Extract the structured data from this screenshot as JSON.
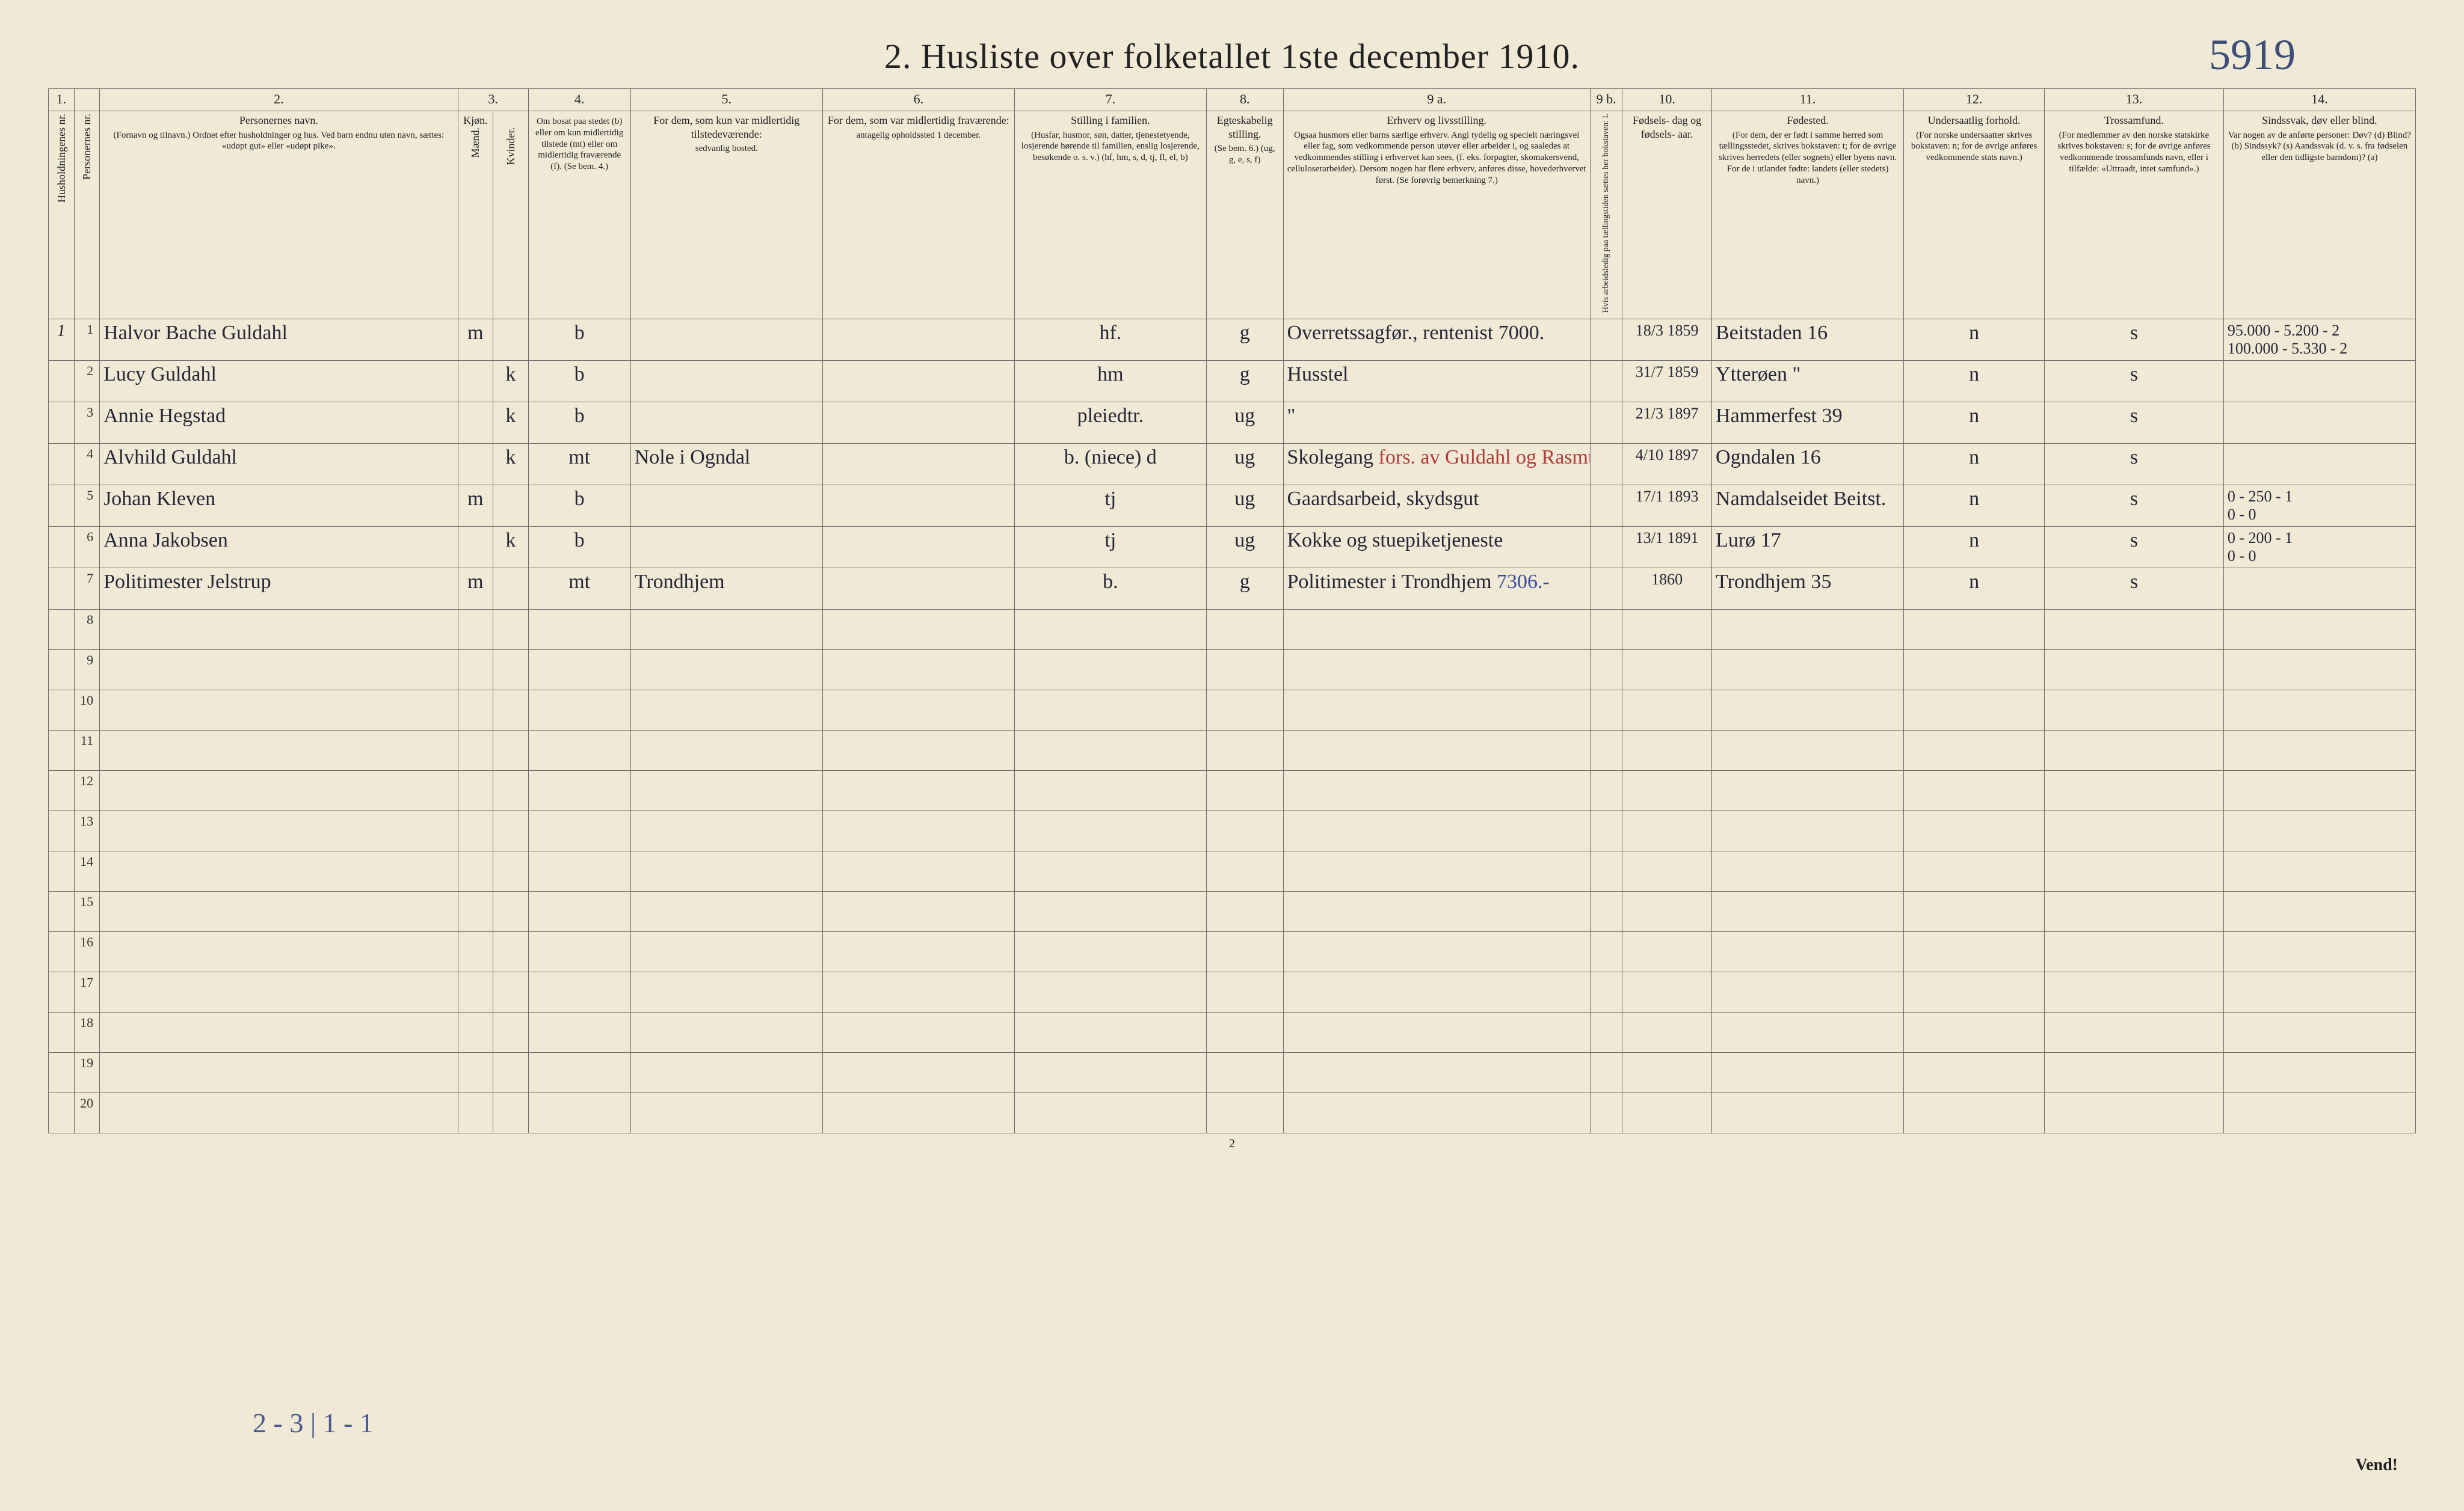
{
  "title": "2.  Husliste over folketallet 1ste december 1910.",
  "hand_top_number": "5919",
  "page_number_bottom": "2",
  "vend": "Vend!",
  "footer_handwritten": "2 - 3 | 1 - 1",
  "colors": {
    "paper": "#efe9d6",
    "ink": "#262636",
    "blue_ink": "#3a4aa0",
    "red_ink": "#b33a3a",
    "rule": "#6b6b6b"
  },
  "col_numbers": [
    "1.",
    "",
    "2.",
    "3.",
    "",
    "4.",
    "5.",
    "6.",
    "7.",
    "8.",
    "9 a.",
    "9 b.",
    "10.",
    "11.",
    "12.",
    "13.",
    "14."
  ],
  "headers": {
    "c1": "Husholdningenes nr.",
    "c1b": "Personernes nr.",
    "c2": "Personernes navn.",
    "c2_small": "(Fornavn og tilnavn.)\nOrdnet efter husholdninger og hus.\nVed barn endnu uten navn, sættes: «udøpt gut» eller «udøpt pike».",
    "c3": "Kjøn.",
    "c3m": "Mænd.",
    "c3k": "Kvinder.",
    "c4": "Om bosat paa stedet (b) eller om kun midlertidig tilstede (mt) eller om midlertidig fraværende (f). (Se bem. 4.)",
    "c5": "For dem, som kun var midlertidig tilstedeværende:",
    "c5_small": "sedvanlig bosted.",
    "c6": "For dem, som var midlertidig fraværende:",
    "c6_small": "antagelig opholdssted 1 december.",
    "c7": "Stilling i familien.",
    "c7_small": "(Husfar, husmor, søn, datter, tjenestetyende, losjerende hørende til familien, enslig losjerende, besøkende o. s. v.)\n(hf, hm, s, d, tj, fl, el, b)",
    "c8": "Egteskabelig stilling.",
    "c8_small": "(Se bem. 6.)\n(ug, g, e, s, f)",
    "c9a": "Erhverv og livsstilling.",
    "c9a_small": "Ogsaa husmors eller barns særlige erhverv. Angi tydelig og specielt næringsvei eller fag, som vedkommende person utøver eller arbeider i, og saaledes at vedkommendes stilling i erhvervet kan sees, (f. eks. forpagter, skomakersvend, celluloserarbeider). Dersom nogen har flere erhverv, anføres disse, hovederhvervet først. (Se forøvrig bemerkning 7.)",
    "c9b": "Hvis arbeidsledig paa tællingstiden sættes her bokstaven: l.",
    "c10": "Fødsels- dag og fødsels- aar.",
    "c11": "Fødested.",
    "c11_small": "(For dem, der er født i samme herred som tællingsstedet, skrives bokstaven: t; for de øvrige skrives herredets (eller sognets) eller byens navn. For de i utlandet fødte: landets (eller stedets) navn.)",
    "c12": "Undersaatlig forhold.",
    "c12_small": "(For norske undersaatter skrives bokstaven: n; for de øvrige anføres vedkommende stats navn.)",
    "c13": "Trossamfund.",
    "c13_small": "(For medlemmer av den norske statskirke skrives bokstaven: s; for de øvrige anføres vedkommende trossamfunds navn, eller i tilfælde: «Uttraadt, intet samfund».)",
    "c14": "Sindssvak, døv eller blind.",
    "c14_small": "Var nogen av de anførte personer:\nDøv?  (d)\nBlind?  (b)\nSindssyk?  (s)\nAandssvak (d. v. s. fra fødselen eller den tidligste barndom)?  (a)"
  },
  "rows": [
    {
      "hh": "1",
      "pn": "1",
      "name": "Halvor Bache Guldahl",
      "mk": "m",
      "kk": "",
      "bosat": "b",
      "mt": "",
      "frav": "",
      "fam": "hf.",
      "egte": "g",
      "erhverv": "Overretssagfør., rentenist  7000.",
      "l": "",
      "dob": "18/3 1859",
      "fodested": "Beitstaden  16",
      "under": "n",
      "tros": "s",
      "c14": "95.000 - 5.200 - 2\n100.000 - 5.330 - 2"
    },
    {
      "hh": "",
      "pn": "2",
      "name": "Lucy Guldahl",
      "mk": "",
      "kk": "k",
      "bosat": "b",
      "mt": "",
      "frav": "",
      "fam": "hm",
      "egte": "g",
      "erhverv": "Husstel",
      "l": "",
      "dob": "31/7 1859",
      "fodested": "Ytterøen  \"",
      "under": "n",
      "tros": "s",
      "c14": ""
    },
    {
      "hh": "",
      "pn": "3",
      "name": "Annie Hegstad",
      "mk": "",
      "kk": "k",
      "bosat": "b",
      "mt": "",
      "frav": "",
      "fam": "pleiedtr.",
      "egte": "ug",
      "erhverv": "\"",
      "l": "",
      "dob": "21/3 1897",
      "fodested": "Hammerfest  39",
      "under": "n",
      "tros": "s",
      "c14": ""
    },
    {
      "hh": "",
      "pn": "4",
      "name": "Alvhild Guldahl",
      "mk": "",
      "kk": "k",
      "bosat": "mt",
      "mt": "Nole i Ogndal",
      "frav": "",
      "fam": "b. (niece) d",
      "egte": "ug",
      "erhverv": "Skolegang  fors. av Guldahl og Rasmussen",
      "l": "",
      "dob": "4/10 1897",
      "fodested": "Ogndalen  16",
      "under": "n",
      "tros": "s",
      "c14": ""
    },
    {
      "hh": "",
      "pn": "5",
      "name": "Johan Kleven",
      "mk": "m",
      "kk": "",
      "bosat": "b",
      "mt": "",
      "frav": "",
      "fam": "tj",
      "egte": "ug",
      "erhverv": "Gaardsarbeid, skydsgut",
      "l": "",
      "dob": "17/1 1893",
      "fodested": "Namdalseidet  Beitst.",
      "under": "n",
      "tros": "s",
      "c14": "0 - 250 - 1\n0 - 0"
    },
    {
      "hh": "",
      "pn": "6",
      "name": "Anna Jakobsen",
      "mk": "",
      "kk": "k",
      "bosat": "b",
      "mt": "",
      "frav": "",
      "fam": "tj",
      "egte": "ug",
      "erhverv": "Kokke og stuepiketjeneste",
      "l": "",
      "dob": "13/1 1891",
      "fodested": "Lurø  17",
      "under": "n",
      "tros": "s",
      "c14": "0 - 200 - 1\n0 - 0"
    },
    {
      "hh": "",
      "pn": "7",
      "name": "Politimester Jelstrup",
      "mk": "m",
      "kk": "",
      "bosat": "mt",
      "mt": "Trondhjem",
      "frav": "",
      "fam": "b.",
      "egte": "g",
      "erhverv": "Politimester i Trondhjem  7306.-",
      "l": "",
      "dob": "1860",
      "fodested": "Trondhjem  35",
      "under": "n",
      "tros": "s",
      "c14": ""
    }
  ],
  "empty_row_count": 13
}
